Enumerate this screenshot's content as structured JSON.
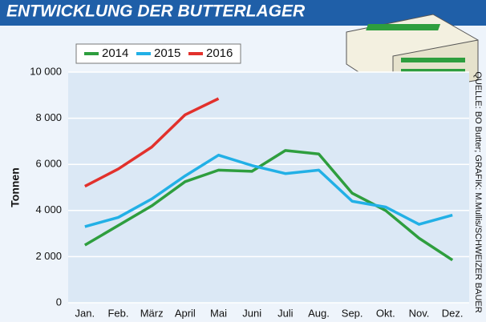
{
  "chart_data": {
    "type": "line",
    "title": "ENTWICKLUNG DER BUTTERLAGER",
    "ylabel": "Tonnen",
    "source": "QUELLE: BO Butter; GRAFIK: M.Mullis/SCHWEIZER BAUER",
    "categories": [
      "Jan.",
      "Feb.",
      "März",
      "April",
      "Mai",
      "Juni",
      "Juli",
      "Aug.",
      "Sep.",
      "Okt.",
      "Nov.",
      "Dez."
    ],
    "series": [
      {
        "name": "2014",
        "color": "#2e9e3e",
        "values": [
          2500,
          3350,
          4200,
          5250,
          5750,
          5700,
          6600,
          6450,
          4750,
          4000,
          2800,
          1850
        ]
      },
      {
        "name": "2015",
        "color": "#22b0e6",
        "values": [
          3300,
          3700,
          4500,
          5500,
          6400,
          5950,
          5600,
          5750,
          4400,
          4150,
          3400,
          3800
        ]
      },
      {
        "name": "2016",
        "color": "#e2312c",
        "values": [
          5050,
          5800,
          6750,
          8150,
          8850,
          null,
          null,
          null,
          null,
          null,
          null,
          null
        ]
      }
    ],
    "ylim": [
      0,
      10000
    ],
    "yticks": [
      0,
      {
        "value": 2000,
        "label": "2 000"
      },
      {
        "value": 4000,
        "label": "4 000"
      },
      {
        "value": 6000,
        "label": "6 000"
      },
      {
        "value": 8000,
        "label": "8 000"
      },
      {
        "value": 10000,
        "label": "10 000"
      }
    ],
    "grid": true
  }
}
